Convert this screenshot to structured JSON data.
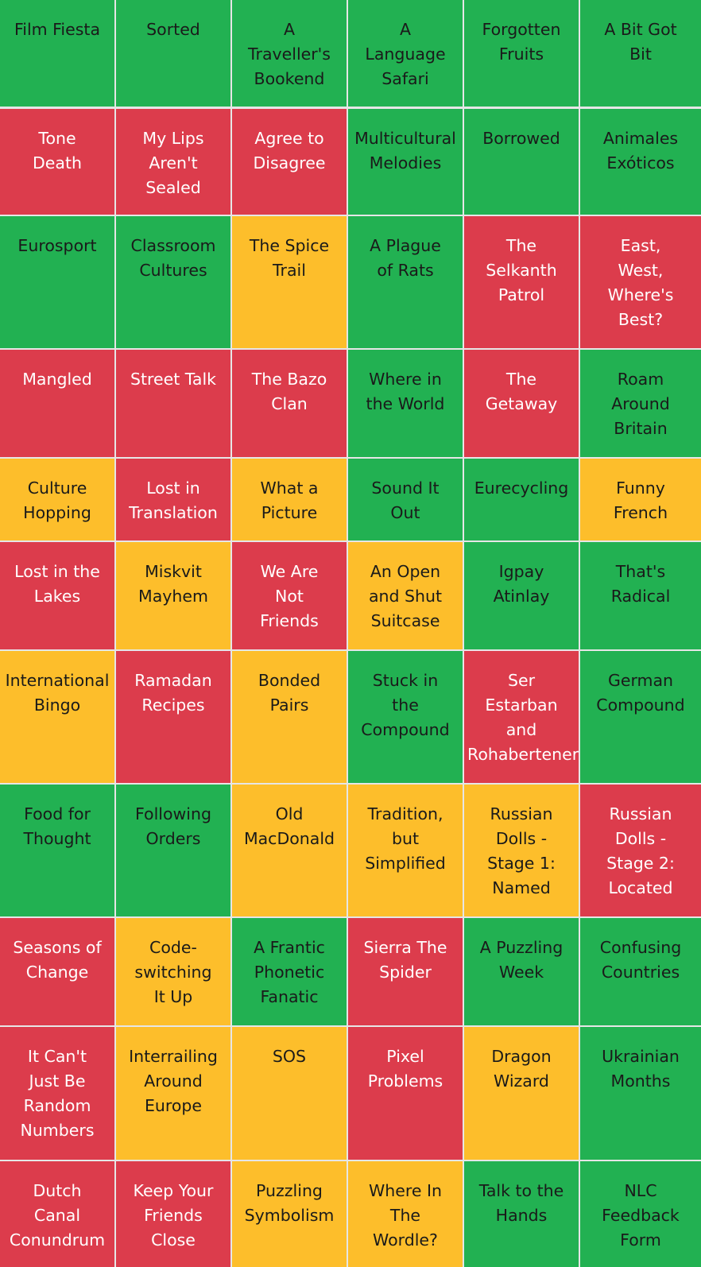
{
  "colors": {
    "green": "#22b152",
    "red": "#dc3c4c",
    "yellow": "#fdbe2b",
    "divider": "#e6e6e6"
  },
  "rows": [
    [
      {
        "label": "Film Fiesta",
        "lines": [
          "Film Fiesta"
        ],
        "status": "green"
      },
      {
        "label": "Sorted",
        "lines": [
          "Sorted"
        ],
        "status": "green"
      },
      {
        "label": "A Traveller's Bookend",
        "lines": [
          "A",
          "Traveller's",
          "Bookend"
        ],
        "status": "green"
      },
      {
        "label": "A Language Safari",
        "lines": [
          "A",
          "Language",
          "Safari"
        ],
        "status": "green"
      },
      {
        "label": "Forgotten Fruits",
        "lines": [
          "Forgotten",
          "Fruits"
        ],
        "status": "green"
      },
      {
        "label": "A Bit Got Bit",
        "lines": [
          "A Bit Got",
          "Bit"
        ],
        "status": "green"
      }
    ],
    [
      {
        "label": "Tone Death",
        "lines": [
          "Tone",
          "Death"
        ],
        "status": "red"
      },
      {
        "label": "My Lips Aren't Sealed",
        "lines": [
          "My Lips",
          "Aren't",
          "Sealed"
        ],
        "status": "red"
      },
      {
        "label": "Agree to Disagree",
        "lines": [
          "Agree to",
          "Disagree"
        ],
        "status": "red"
      },
      {
        "label": "Multicultural Melodies",
        "lines": [
          "Multicultural",
          "Melodies"
        ],
        "status": "green"
      },
      {
        "label": "Borrowed",
        "lines": [
          "Borrowed"
        ],
        "status": "green"
      },
      {
        "label": "Animales Exóticos",
        "lines": [
          "Animales",
          "Exóticos"
        ],
        "status": "green"
      }
    ],
    [
      {
        "label": "Eurosport",
        "lines": [
          "Eurosport"
        ],
        "status": "green"
      },
      {
        "label": "Classroom Cultures",
        "lines": [
          "Classroom",
          "Cultures"
        ],
        "status": "green"
      },
      {
        "label": "The Spice Trail",
        "lines": [
          "The Spice",
          "Trail"
        ],
        "status": "yellow"
      },
      {
        "label": "A Plague of Rats",
        "lines": [
          "A Plague",
          "of Rats"
        ],
        "status": "green"
      },
      {
        "label": "The Selkanth Patrol",
        "lines": [
          "The",
          "Selkanth",
          "Patrol"
        ],
        "status": "red"
      },
      {
        "label": "East, West, Where's Best?",
        "lines": [
          "East,",
          "West,",
          "Where's",
          "Best?"
        ],
        "status": "red"
      }
    ],
    [
      {
        "label": "Mangled",
        "lines": [
          "Mangled"
        ],
        "status": "red"
      },
      {
        "label": "Street Talk",
        "lines": [
          "Street Talk"
        ],
        "status": "red"
      },
      {
        "label": "The Bazo Clan",
        "lines": [
          "The Bazo",
          "Clan"
        ],
        "status": "red"
      },
      {
        "label": "Where in the World",
        "lines": [
          "Where in",
          "the World"
        ],
        "status": "green"
      },
      {
        "label": "The Getaway",
        "lines": [
          "The",
          "Getaway"
        ],
        "status": "red"
      },
      {
        "label": "Roam Around Britain",
        "lines": [
          "Roam",
          "Around",
          "Britain"
        ],
        "status": "green"
      }
    ],
    [
      {
        "label": "Culture Hopping",
        "lines": [
          "Culture",
          "Hopping"
        ],
        "status": "yellow"
      },
      {
        "label": "Lost in Translation",
        "lines": [
          "Lost in",
          "Translation"
        ],
        "status": "red"
      },
      {
        "label": "What a Picture",
        "lines": [
          "What a",
          "Picture"
        ],
        "status": "yellow"
      },
      {
        "label": "Sound It Out",
        "lines": [
          "Sound It",
          "Out"
        ],
        "status": "green"
      },
      {
        "label": "Eurecycling",
        "lines": [
          "Eurecycling"
        ],
        "status": "green"
      },
      {
        "label": "Funny French",
        "lines": [
          "Funny",
          "French"
        ],
        "status": "yellow"
      }
    ],
    [
      {
        "label": "Lost in the Lakes",
        "lines": [
          "Lost in the",
          "Lakes"
        ],
        "status": "red"
      },
      {
        "label": "Miskvit Mayhem",
        "lines": [
          "Miskvit",
          "Mayhem"
        ],
        "status": "yellow"
      },
      {
        "label": "We Are Not Friends",
        "lines": [
          "We Are",
          "Not",
          "Friends"
        ],
        "status": "red"
      },
      {
        "label": "An Open and Shut Suitcase",
        "lines": [
          "An Open",
          "and Shut",
          "Suitcase"
        ],
        "status": "yellow"
      },
      {
        "label": "Igpay Atinlay",
        "lines": [
          "Igpay",
          "Atinlay"
        ],
        "status": "green"
      },
      {
        "label": "That's Radical",
        "lines": [
          "That's",
          "Radical"
        ],
        "status": "green"
      }
    ],
    [
      {
        "label": "International Bingo",
        "lines": [
          "International",
          "Bingo"
        ],
        "status": "yellow"
      },
      {
        "label": "Ramadan Recipes",
        "lines": [
          "Ramadan",
          "Recipes"
        ],
        "status": "red"
      },
      {
        "label": "Bonded Pairs",
        "lines": [
          "Bonded",
          "Pairs"
        ],
        "status": "yellow"
      },
      {
        "label": "Stuck in the Compound",
        "lines": [
          "Stuck in",
          "the",
          "Compound"
        ],
        "status": "green"
      },
      {
        "label": "Ser Estarban and Rohabertener",
        "lines": [
          "Ser",
          "Estarban",
          "and",
          "Rohabertener"
        ],
        "status": "red"
      },
      {
        "label": "German Compound",
        "lines": [
          "German",
          "Compound"
        ],
        "status": "green"
      }
    ],
    [
      {
        "label": "Food for Thought",
        "lines": [
          "Food for",
          "Thought"
        ],
        "status": "green"
      },
      {
        "label": "Following Orders",
        "lines": [
          "Following",
          "Orders"
        ],
        "status": "green"
      },
      {
        "label": "Old MacDonald",
        "lines": [
          "Old",
          "MacDonald"
        ],
        "status": "yellow"
      },
      {
        "label": "Tradition, but Simplified",
        "lines": [
          "Tradition,",
          "but",
          "Simplified"
        ],
        "status": "yellow"
      },
      {
        "label": "Russian Dolls - Stage 1: Named",
        "lines": [
          "Russian",
          "Dolls -",
          "Stage 1:",
          "Named"
        ],
        "status": "yellow"
      },
      {
        "label": "Russian Dolls - Stage 2: Located",
        "lines": [
          "Russian",
          "Dolls -",
          "Stage 2:",
          "Located"
        ],
        "status": "red"
      }
    ],
    [
      {
        "label": "Seasons of Change",
        "lines": [
          "Seasons of",
          "Change"
        ],
        "status": "red"
      },
      {
        "label": "Code-switching It Up",
        "lines": [
          "Code-",
          "switching",
          "It Up"
        ],
        "status": "yellow"
      },
      {
        "label": "A Frantic Phonetic Fanatic",
        "lines": [
          "A Frantic",
          "Phonetic",
          "Fanatic"
        ],
        "status": "green"
      },
      {
        "label": "Sierra The Spider",
        "lines": [
          "Sierra The",
          "Spider"
        ],
        "status": "red"
      },
      {
        "label": "A Puzzling Week",
        "lines": [
          "A Puzzling",
          "Week"
        ],
        "status": "green"
      },
      {
        "label": "Confusing Countries",
        "lines": [
          "Confusing",
          "Countries"
        ],
        "status": "green"
      }
    ],
    [
      {
        "label": "It Can't Just Be Random Numbers",
        "lines": [
          "It Can't",
          "Just Be",
          "Random",
          "Numbers"
        ],
        "status": "red"
      },
      {
        "label": "Interrailing Around Europe",
        "lines": [
          "Interrailing",
          "Around",
          "Europe"
        ],
        "status": "yellow"
      },
      {
        "label": "SOS",
        "lines": [
          "SOS"
        ],
        "status": "yellow"
      },
      {
        "label": "Pixel Problems",
        "lines": [
          "Pixel",
          "Problems"
        ],
        "status": "red"
      },
      {
        "label": "Dragon Wizard",
        "lines": [
          "Dragon",
          "Wizard"
        ],
        "status": "yellow"
      },
      {
        "label": "Ukrainian Months",
        "lines": [
          "Ukrainian",
          "Months"
        ],
        "status": "green"
      }
    ],
    [
      {
        "label": "Dutch Canal Conundrum",
        "lines": [
          "Dutch",
          "Canal",
          "Conundrum"
        ],
        "status": "red"
      },
      {
        "label": "Keep Your Friends Close",
        "lines": [
          "Keep Your",
          "Friends",
          "Close"
        ],
        "status": "red"
      },
      {
        "label": "Puzzling Symbolism",
        "lines": [
          "Puzzling",
          "Symbolism"
        ],
        "status": "yellow"
      },
      {
        "label": "Where In The Wordle?",
        "lines": [
          "Where In",
          "The",
          "Wordle?"
        ],
        "status": "yellow"
      },
      {
        "label": "Talk to the Hands",
        "lines": [
          "Talk to the",
          "Hands"
        ],
        "status": "green"
      },
      {
        "label": "NLC Feedback Form",
        "lines": [
          "NLC",
          "Feedback",
          "Form"
        ],
        "status": "green"
      }
    ]
  ]
}
